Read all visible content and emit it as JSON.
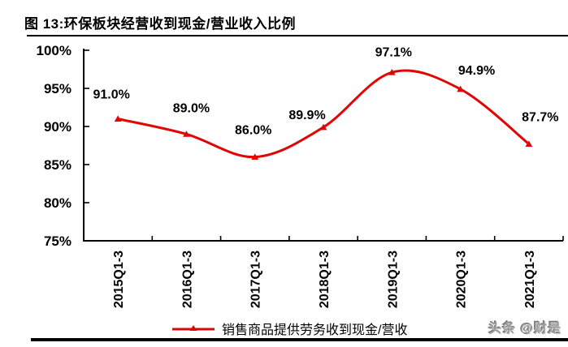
{
  "figure": {
    "title": "图 13:环保板块经营收到现金/营业收入比例",
    "watermark": "头条 @财是"
  },
  "chart_data": {
    "type": "line",
    "title": "环保板块经营收到现金/营业收入比例",
    "categories": [
      "2015Q1-3",
      "2016Q1-3",
      "2017Q1-3",
      "2018Q1-3",
      "2019Q1-3",
      "2020Q1-3",
      "2021Q1-3"
    ],
    "series": [
      {
        "name": "销售商品提供劳务收到现金/营收",
        "values": [
          91.0,
          89.0,
          86.0,
          89.9,
          97.1,
          94.9,
          87.7
        ],
        "color": "#e00606",
        "smooth": true,
        "marker": "triangle"
      }
    ],
    "data_labels": [
      "91.0%",
      "89.0%",
      "86.0%",
      "89.9%",
      "97.1%",
      "94.9%",
      "87.7%"
    ],
    "ylim": [
      75,
      100
    ],
    "y_tick_step": 5,
    "y_tick_labels": [
      "75%",
      "80%",
      "85%",
      "90%",
      "95%",
      "100%"
    ],
    "xlabel": "",
    "ylabel": "",
    "grid": false,
    "legend_position": "bottom",
    "axis_color": "#000000",
    "text_color": "#000000"
  }
}
